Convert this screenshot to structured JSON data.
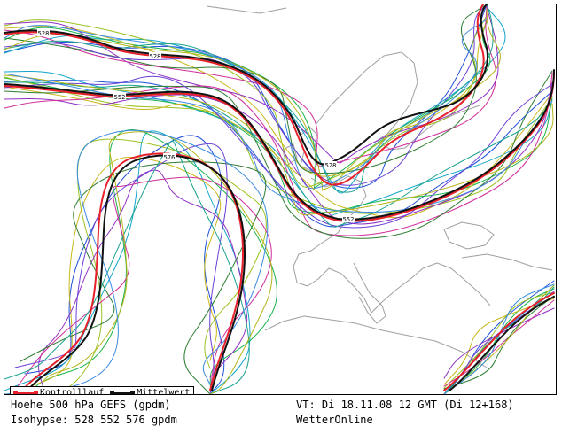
{
  "legend": {
    "control_label": "Kontrolllauf",
    "mean_label": "Mittelwert"
  },
  "caption": {
    "line1": "Hoehe 500 hPa GEFS (gpdm)",
    "line2": "Isohypse: 528 552 576 gpdm",
    "valid_time": "VT: Di  18.11.08  12 GMT (Di 12+168)",
    "source": "WetterOnline"
  },
  "isohypse_labels": [
    "528",
    "528",
    "552",
    "576",
    "528",
    "552"
  ],
  "colors": {
    "control": "#e8202a",
    "mean": "#111111",
    "coast": "#a0a0a0",
    "members": [
      "#1f4fd8",
      "#13a6c9",
      "#1bb34a",
      "#9ac21f",
      "#c9b81a",
      "#8f2fc2",
      "#d02d9a",
      "#2e7d32",
      "#6d3fd6",
      "#1aa38f",
      "#b5b51a",
      "#3a8be0"
    ]
  }
}
